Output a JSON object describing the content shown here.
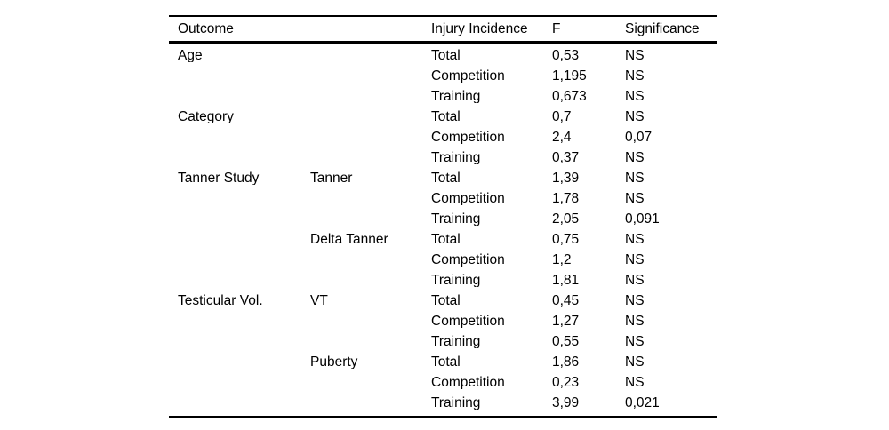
{
  "table": {
    "header": {
      "outcome": "Outcome",
      "sub_outcome": "",
      "injury_incidence": "Injury Incidence",
      "f": "F",
      "significance": "Significance"
    },
    "rows": [
      {
        "outcome": "Age",
        "sub": "",
        "incidence": "Total",
        "f": "0,53",
        "sig": "NS"
      },
      {
        "outcome": "",
        "sub": "",
        "incidence": "Competition",
        "f": "1,195",
        "sig": "NS"
      },
      {
        "outcome": "",
        "sub": "",
        "incidence": "Training",
        "f": "0,673",
        "sig": "NS"
      },
      {
        "outcome": "Category",
        "sub": "",
        "incidence": "Total",
        "f": "0,7",
        "sig": "NS"
      },
      {
        "outcome": "",
        "sub": "",
        "incidence": "Competition",
        "f": "2,4",
        "sig": "0,07"
      },
      {
        "outcome": "",
        "sub": "",
        "incidence": "Training",
        "f": "0,37",
        "sig": "NS"
      },
      {
        "outcome": "Tanner Study",
        "sub": "Tanner",
        "incidence": "Total",
        "f": "1,39",
        "sig": "NS"
      },
      {
        "outcome": "",
        "sub": "",
        "incidence": "Competition",
        "f": "1,78",
        "sig": "NS"
      },
      {
        "outcome": "",
        "sub": "",
        "incidence": "Training",
        "f": "2,05",
        "sig": "0,091"
      },
      {
        "outcome": "",
        "sub": "Delta Tanner",
        "incidence": "Total",
        "f": "0,75",
        "sig": "NS"
      },
      {
        "outcome": "",
        "sub": "",
        "incidence": "Competition",
        "f": "1,2",
        "sig": "NS"
      },
      {
        "outcome": "",
        "sub": "",
        "incidence": "Training",
        "f": "1,81",
        "sig": "NS"
      },
      {
        "outcome": "Testicular Vol.",
        "sub": "VT",
        "incidence": "Total",
        "f": "0,45",
        "sig": "NS"
      },
      {
        "outcome": "",
        "sub": "",
        "incidence": "Competition",
        "f": "1,27",
        "sig": "NS"
      },
      {
        "outcome": "",
        "sub": "",
        "incidence": "Training",
        "f": "0,55",
        "sig": "NS"
      },
      {
        "outcome": "",
        "sub": "Puberty",
        "incidence": "Total",
        "f": "1,86",
        "sig": "NS"
      },
      {
        "outcome": "",
        "sub": "",
        "incidence": "Competition",
        "f": "0,23",
        "sig": "NS"
      },
      {
        "outcome": "",
        "sub": "",
        "incidence": "Training",
        "f": "3,99",
        "sig": "0,021"
      }
    ],
    "colors": {
      "text": "#000000",
      "background": "#ffffff",
      "rule": "#000000"
    }
  }
}
